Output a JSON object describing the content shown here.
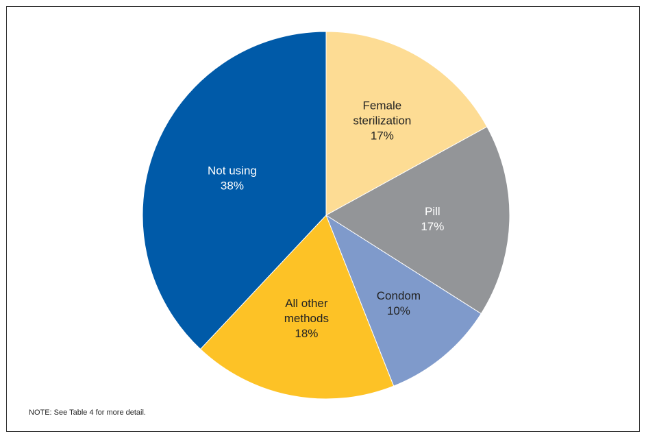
{
  "chart_data": {
    "type": "pie",
    "title": "",
    "slices": [
      {
        "label_lines": [
          "Female",
          "sterilization"
        ],
        "value_label": "17%",
        "value": 17,
        "color": "#fddc94",
        "text_color": "#222222"
      },
      {
        "label_lines": [
          "Pill"
        ],
        "value_label": "17%",
        "value": 17,
        "color": "#939598",
        "text_color": "#ffffff"
      },
      {
        "label_lines": [
          "Condom"
        ],
        "value_label": "10%",
        "value": 10,
        "color": "#7f9acb",
        "text_color": "#222222"
      },
      {
        "label_lines": [
          "All other",
          "methods"
        ],
        "value_label": "18%",
        "value": 18,
        "color": "#fdc226",
        "text_color": "#222222"
      },
      {
        "label_lines": [
          "Not using"
        ],
        "value_label": "38%",
        "value": 38,
        "color": "#005aa8",
        "text_color": "#ffffff"
      }
    ]
  },
  "note": "NOTE: See Table 4 for more detail."
}
